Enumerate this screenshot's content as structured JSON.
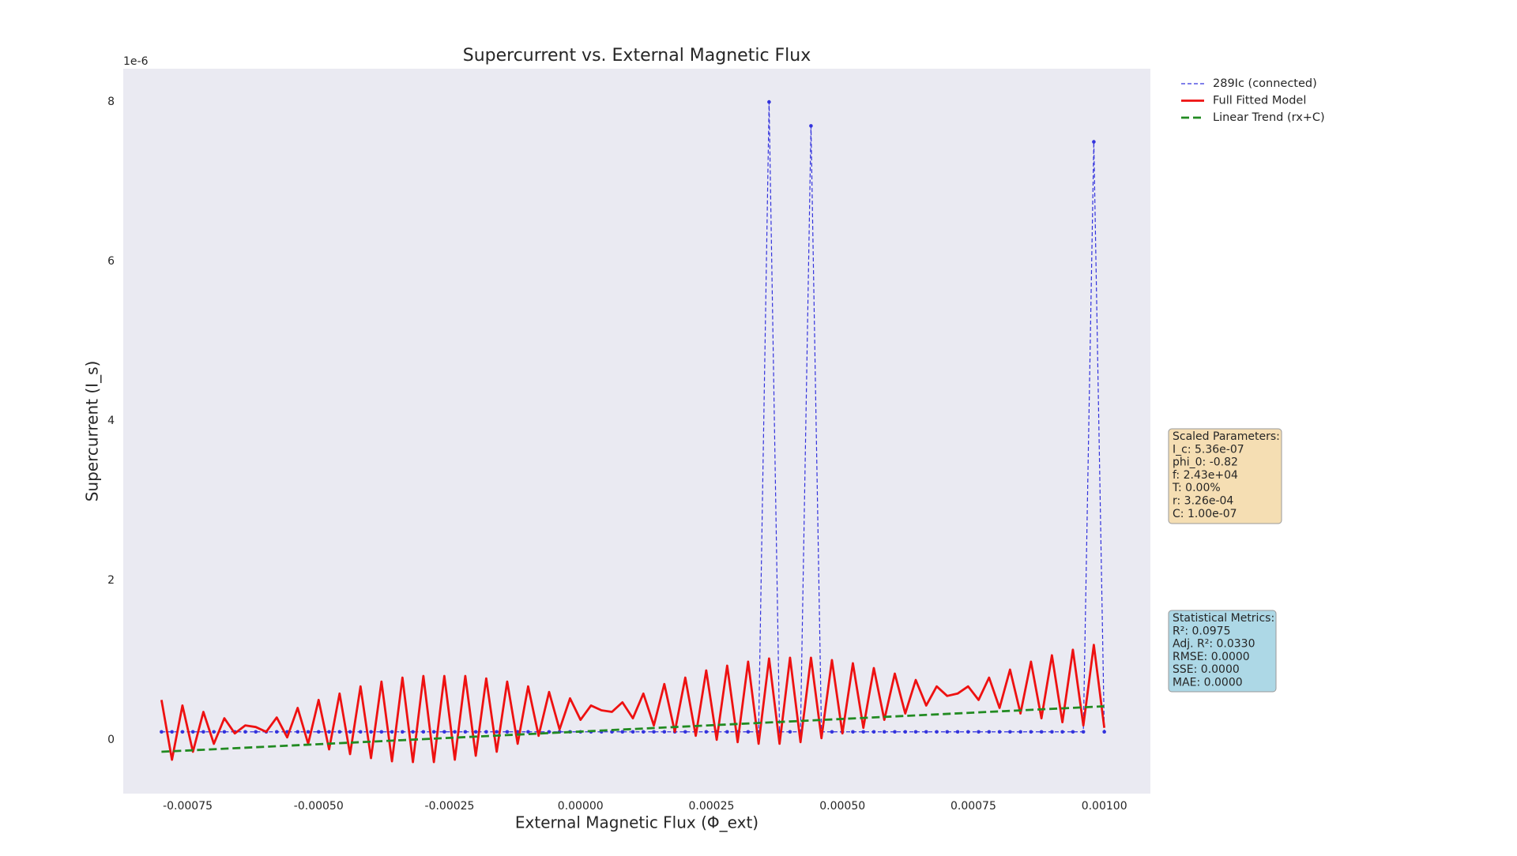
{
  "chart_data": {
    "type": "line",
    "title": "Supercurrent vs. External Magnetic Flux",
    "x_label": "External Magnetic Flux (Φ_ext)",
    "y_label": "Supercurrent (I_s)",
    "y_offset_label": "1e-6",
    "x": [
      -0.0008,
      -0.00078,
      -0.00076,
      -0.00074,
      -0.00072,
      -0.0007,
      -0.00068,
      -0.00066,
      -0.00064,
      -0.00062,
      -0.0006,
      -0.00058,
      -0.00056,
      -0.00054,
      -0.00052,
      -0.0005,
      -0.00048,
      -0.00046,
      -0.00044,
      -0.00042,
      -0.0004,
      -0.00038,
      -0.00036,
      -0.00034,
      -0.00032,
      -0.0003,
      -0.00028,
      -0.00026,
      -0.00024,
      -0.00022,
      -0.0002,
      -0.00018,
      -0.00016,
      -0.00014,
      -0.00012,
      -0.0001,
      -8e-05,
      -6e-05,
      -4e-05,
      -2e-05,
      0,
      2e-05,
      4e-05,
      6e-05,
      8e-05,
      0.0001,
      0.00012,
      0.00014,
      0.00016,
      0.00018,
      0.0002,
      0.00022,
      0.00024,
      0.00026,
      0.00028,
      0.0003,
      0.00032,
      0.00034,
      0.00036,
      0.00038,
      0.0004,
      0.00042,
      0.00044,
      0.00046,
      0.00048,
      0.0005,
      0.00052,
      0.00054,
      0.00056,
      0.00058,
      0.0006,
      0.00062,
      0.00064,
      0.00066,
      0.00068,
      0.0007,
      0.00072,
      0.00074,
      0.00076,
      0.00078,
      0.0008,
      0.00082,
      0.00084,
      0.00086,
      0.00088,
      0.0009,
      0.00092,
      0.00094,
      0.00096,
      0.00098,
      0.001
    ],
    "series": [
      {
        "name": "289Ic (connected)",
        "color": "#3333dd",
        "style": "dashed-markers",
        "values": [
          0.1,
          0.1,
          0.1,
          0.1,
          0.1,
          0.1,
          0.1,
          0.1,
          0.1,
          0.1,
          0.1,
          0.1,
          0.1,
          0.1,
          0.1,
          0.1,
          0.1,
          0.1,
          0.1,
          0.1,
          0.1,
          0.1,
          0.1,
          0.1,
          0.1,
          0.1,
          0.1,
          0.1,
          0.1,
          0.1,
          0.1,
          0.1,
          0.1,
          0.1,
          0.1,
          0.1,
          0.1,
          0.1,
          0.1,
          0.1,
          0.1,
          0.1,
          0.1,
          0.1,
          0.1,
          0.1,
          0.1,
          0.1,
          0.1,
          0.1,
          0.1,
          0.1,
          0.1,
          0.1,
          0.1,
          0.1,
          0.1,
          0.1,
          8.0,
          0.1,
          0.1,
          0.1,
          7.7,
          0.1,
          0.1,
          0.1,
          0.1,
          0.1,
          0.1,
          0.1,
          0.1,
          0.1,
          0.1,
          0.1,
          0.1,
          0.1,
          0.1,
          0.1,
          0.1,
          0.1,
          0.1,
          0.1,
          0.1,
          0.1,
          0.1,
          0.1,
          0.1,
          0.1,
          0.1,
          7.5,
          0.1
        ]
      },
      {
        "name": "Full Fitted Model",
        "color": "#ee1111",
        "style": "solid",
        "values": [
          0.5,
          -0.25,
          0.43,
          -0.15,
          0.35,
          -0.05,
          0.27,
          0.08,
          0.18,
          0.16,
          0.1,
          0.28,
          0.03,
          0.4,
          -0.05,
          0.5,
          -0.12,
          0.58,
          -0.18,
          0.67,
          -0.23,
          0.73,
          -0.27,
          0.78,
          -0.28,
          0.8,
          -0.28,
          0.8,
          -0.25,
          0.8,
          -0.2,
          0.77,
          -0.15,
          0.73,
          -0.05,
          0.67,
          0.05,
          0.6,
          0.13,
          0.52,
          0.25,
          0.43,
          0.37,
          0.35,
          0.47,
          0.27,
          0.58,
          0.18,
          0.7,
          0.1,
          0.78,
          0.05,
          0.87,
          0.0,
          0.93,
          -0.03,
          0.98,
          -0.05,
          1.02,
          -0.05,
          1.03,
          -0.03,
          1.03,
          0.02,
          1.0,
          0.08,
          0.96,
          0.15,
          0.9,
          0.25,
          0.83,
          0.33,
          0.75,
          0.43,
          0.67,
          0.55,
          0.58,
          0.67,
          0.5,
          0.78,
          0.4,
          0.88,
          0.33,
          0.98,
          0.27,
          1.06,
          0.22,
          1.13,
          0.18,
          1.19,
          0.15
        ]
      },
      {
        "name": "Linear Trend (rx+C)",
        "color": "#228b22",
        "style": "dashed",
        "x": [
          -0.0008,
          0.001
        ],
        "values": [
          -0.15,
          0.42
        ]
      }
    ],
    "xlim": [
      -0.000873,
      0.001088
    ],
    "xticks": [
      {
        "value": -0.00075,
        "label": "-0.00075"
      },
      {
        "value": -0.0005,
        "label": "-0.00050"
      },
      {
        "value": -0.00025,
        "label": "-0.00025"
      },
      {
        "value": 0,
        "label": "0.00000"
      },
      {
        "value": 0.00025,
        "label": "0.00025"
      },
      {
        "value": 0.0005,
        "label": "0.00050"
      },
      {
        "value": 0.00075,
        "label": "0.00075"
      },
      {
        "value": 0.001,
        "label": "0.00100"
      }
    ],
    "ylim": [
      -0.675,
      8.417
    ],
    "yticks": [
      0,
      2,
      4,
      6,
      8
    ],
    "grid": false,
    "legend": "outside-upper-right",
    "text_boxes": [
      {
        "facecolor": "#f5deb3",
        "lines": [
          "Scaled Parameters:",
          "I_c: 5.36e-07",
          "phi_0: -0.82",
          "f: 2.43e+04",
          "T: 0.00%",
          "r: 3.26e-04",
          "C: 1.00e-07"
        ]
      },
      {
        "facecolor": "#add8e6",
        "lines": [
          "Statistical Metrics:",
          "R²: 0.0975",
          "Adj. R²: 0.0330",
          "RMSE: 0.0000",
          "SSE: 0.0000",
          "MAE: 0.0000"
        ]
      }
    ]
  }
}
